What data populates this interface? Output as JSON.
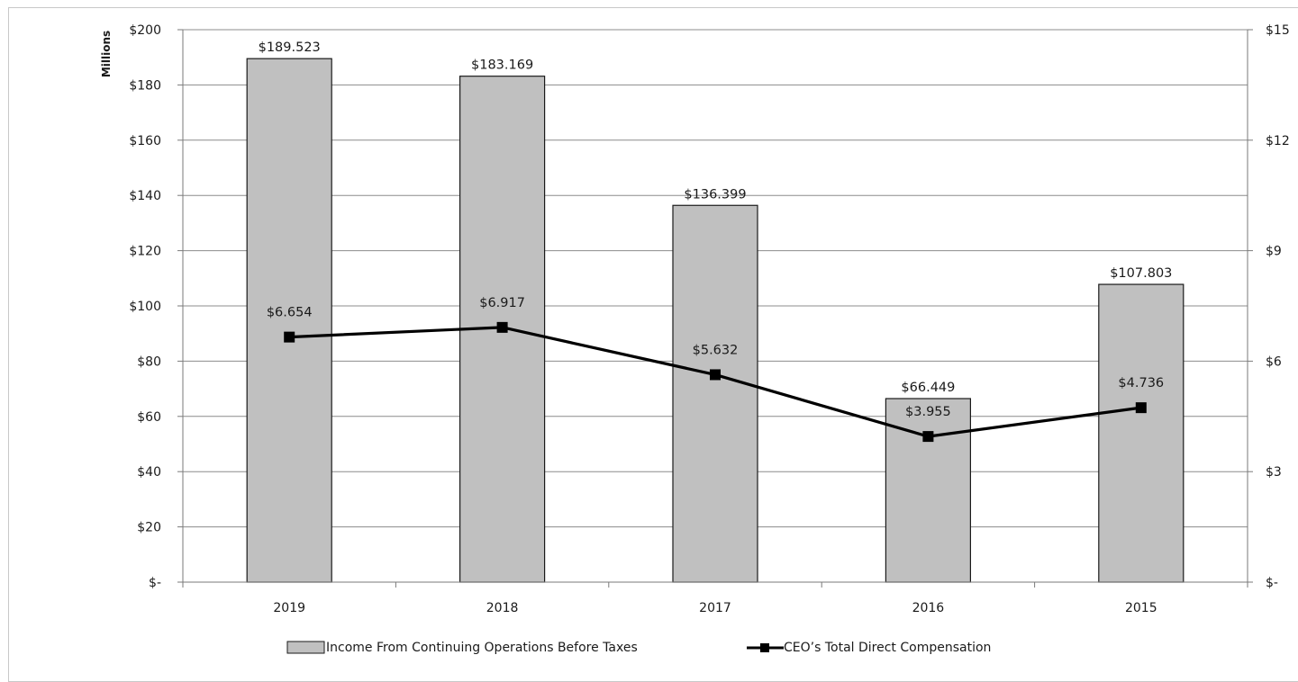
{
  "chart_data": {
    "type": "bar",
    "categories": [
      "2019",
      "2018",
      "2017",
      "2016",
      "2015"
    ],
    "series": [
      {
        "name": "Income From Continuing Operations Before Taxes",
        "type": "bar",
        "axis": "left",
        "values": [
          189.523,
          183.169,
          136.399,
          66.449,
          107.803
        ],
        "labels": [
          "$189.523",
          "$183.169",
          "$136.399",
          "$66.449",
          "$107.803"
        ]
      },
      {
        "name": "CEO’s Total Direct Compensation",
        "type": "line",
        "axis": "right",
        "values": [
          6.654,
          6.917,
          5.632,
          3.955,
          4.736
        ],
        "labels": [
          "$6.654",
          "$6.917",
          "$5.632",
          "$3.955",
          "$4.736"
        ]
      }
    ],
    "ylabel": "Millions",
    "ylim": [
      0,
      200
    ],
    "yticks": [
      0,
      20,
      40,
      60,
      80,
      100,
      120,
      140,
      160,
      180,
      200
    ],
    "ytick_labels": [
      "$-",
      "$20",
      "$40",
      "$60",
      "$80",
      "$100",
      "$120",
      "$140",
      "$160",
      "$180",
      "$200"
    ],
    "y2lim": [
      0,
      15
    ],
    "y2ticks": [
      0,
      3,
      6,
      9,
      12,
      15
    ],
    "y2tick_labels": [
      "$-",
      "$3",
      "$6",
      "$9",
      "$12",
      "$15"
    ],
    "grid": true,
    "legend_position": "bottom",
    "colors": {
      "bar_fill": "#c0c0c0",
      "bar_stroke": "#1a1a1a",
      "line": "#000000",
      "grid": "#8c8c8c"
    }
  }
}
